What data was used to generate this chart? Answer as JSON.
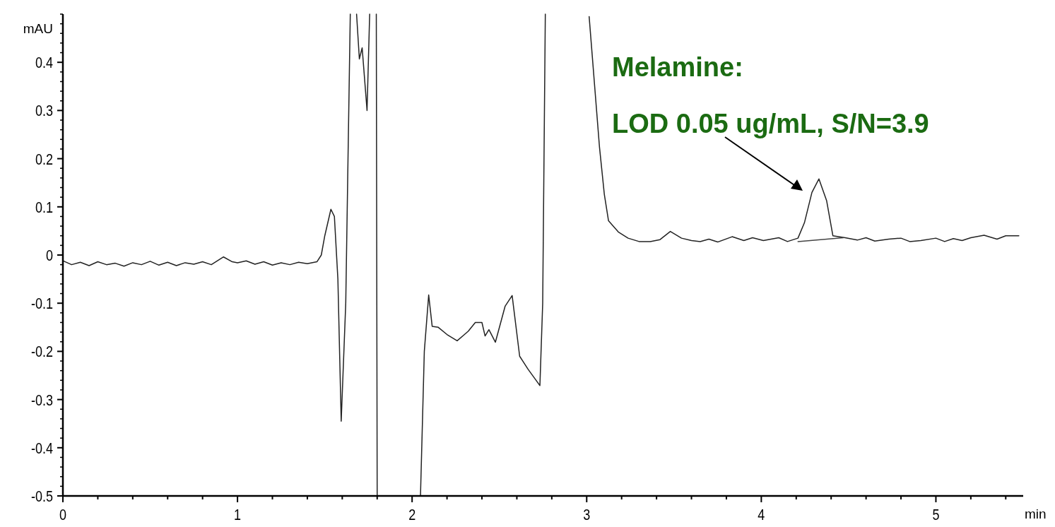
{
  "chart_data": {
    "type": "line",
    "xlabel": "min",
    "ylabel": "mAU",
    "xlim": [
      0,
      5.5
    ],
    "ylim": [
      -0.5,
      0.5
    ],
    "xticks": [
      0,
      {
        "value": 0.2,
        "label": null
      },
      {
        "value": 0.4,
        "label": null
      },
      {
        "value": 0.6,
        "label": null
      },
      {
        "value": 0.8,
        "label": null
      },
      1,
      {
        "value": 1.2,
        "label": null
      },
      {
        "value": 1.4,
        "label": null
      },
      {
        "value": 1.6,
        "label": null
      },
      {
        "value": 1.8,
        "label": null
      },
      2,
      {
        "value": 2.2,
        "label": null
      },
      {
        "value": 2.4,
        "label": null
      },
      {
        "value": 2.6,
        "label": null
      },
      {
        "value": 2.8,
        "label": null
      },
      3,
      {
        "value": 3.2,
        "label": null
      },
      {
        "value": 3.4,
        "label": null
      },
      {
        "value": 3.6,
        "label": null
      },
      {
        "value": 3.8,
        "label": null
      },
      4,
      {
        "value": 4.2,
        "label": null
      },
      {
        "value": 4.4,
        "label": null
      },
      {
        "value": 4.6,
        "label": null
      },
      {
        "value": 4.8,
        "label": null
      },
      5,
      {
        "value": 5.2,
        "label": null
      },
      {
        "value": 5.4,
        "label": null
      }
    ],
    "yticks": [
      -0.5,
      {
        "value": -0.48,
        "label": null
      },
      {
        "value": -0.46,
        "label": null
      },
      {
        "value": -0.44,
        "label": null
      },
      {
        "value": -0.42,
        "label": null
      },
      -0.4,
      {
        "value": -0.38,
        "label": null
      },
      {
        "value": -0.36,
        "label": null
      },
      {
        "value": -0.34,
        "label": null
      },
      {
        "value": -0.32,
        "label": null
      },
      -0.3,
      {
        "value": -0.28,
        "label": null
      },
      {
        "value": -0.26,
        "label": null
      },
      {
        "value": -0.24,
        "label": null
      },
      {
        "value": -0.22,
        "label": null
      },
      -0.2,
      {
        "value": -0.18,
        "label": null
      },
      {
        "value": -0.16,
        "label": null
      },
      {
        "value": -0.14,
        "label": null
      },
      {
        "value": -0.12,
        "label": null
      },
      -0.1,
      {
        "value": -0.08,
        "label": null
      },
      {
        "value": -0.06,
        "label": null
      },
      {
        "value": -0.04,
        "label": null
      },
      {
        "value": -0.02,
        "label": null
      },
      0,
      {
        "value": 0.02,
        "label": null
      },
      {
        "value": 0.04,
        "label": null
      },
      {
        "value": 0.06,
        "label": null
      },
      {
        "value": 0.08,
        "label": null
      },
      0.1,
      {
        "value": 0.12,
        "label": null
      },
      {
        "value": 0.14,
        "label": null
      },
      {
        "value": 0.16,
        "label": null
      },
      {
        "value": 0.18,
        "label": null
      },
      0.2,
      {
        "value": 0.22,
        "label": null
      },
      {
        "value": 0.24,
        "label": null
      },
      {
        "value": 0.26,
        "label": null
      },
      {
        "value": 0.28,
        "label": null
      },
      0.3,
      {
        "value": 0.32,
        "label": null
      },
      {
        "value": 0.34,
        "label": null
      },
      {
        "value": 0.36,
        "label": null
      },
      {
        "value": 0.38,
        "label": null
      },
      0.4,
      {
        "value": 0.42,
        "label": null
      },
      {
        "value": 0.44,
        "label": null
      },
      {
        "value": 0.46,
        "label": null
      },
      {
        "value": 0.48,
        "label": null
      },
      {
        "value": 0.5,
        "label": null
      }
    ],
    "series": [
      {
        "color": "#222222",
        "x": [
          0,
          0.05,
          0.1,
          0.15,
          0.2,
          0.25,
          0.3,
          0.35,
          0.4,
          0.45,
          0.5,
          0.55,
          0.6,
          0.65,
          0.7,
          0.75,
          0.8,
          0.85,
          0.92,
          0.97,
          1.0,
          1.05,
          1.1,
          1.15,
          1.2,
          1.25,
          1.3,
          1.35,
          1.4,
          1.455,
          1.48,
          1.5,
          1.535,
          1.555,
          1.575,
          1.594,
          1.62,
          1.646,
          1.66,
          1.682,
          1.698,
          1.714,
          1.742,
          1.757,
          1.77,
          1.795,
          1.8,
          1.9,
          2.048,
          2.07,
          2.095,
          2.115,
          2.15,
          2.2,
          2.258,
          2.3,
          2.322,
          2.362,
          2.4,
          2.418,
          2.44,
          2.477,
          2.533,
          2.573,
          2.616,
          2.664,
          2.7,
          2.732,
          2.748,
          2.763,
          2.9,
          3.014,
          3.073,
          3.101,
          3.125,
          3.181,
          3.237,
          3.3,
          3.364,
          3.42,
          3.479,
          3.543,
          3.6,
          3.65,
          3.7,
          3.75,
          3.833,
          3.9,
          3.95,
          4.012,
          4.1,
          4.15,
          4.21,
          4.247,
          4.29,
          4.33,
          4.374,
          4.41,
          4.48,
          4.55,
          4.6,
          4.65,
          4.73,
          4.8,
          4.85,
          4.914,
          5.0,
          5.05,
          5.1,
          5.15,
          5.2,
          5.276,
          5.35,
          5.4,
          5.475
        ],
        "values": [
          -0.012,
          -0.02,
          -0.015,
          -0.022,
          -0.014,
          -0.02,
          -0.017,
          -0.023,
          -0.016,
          -0.02,
          -0.013,
          -0.021,
          -0.015,
          -0.022,
          -0.016,
          -0.019,
          -0.014,
          -0.02,
          -0.004,
          -0.014,
          -0.016,
          -0.012,
          -0.019,
          -0.014,
          -0.021,
          -0.016,
          -0.02,
          -0.015,
          -0.018,
          -0.014,
          0.0,
          0.04,
          0.095,
          0.08,
          -0.05,
          -0.345,
          -0.1,
          0.5,
          null,
          0.5,
          0.407,
          0.43,
          0.3,
          0.5,
          null,
          0.5,
          -0.5,
          null,
          -0.5,
          -0.2,
          -0.083,
          -0.148,
          -0.15,
          -0.165,
          -0.178,
          -0.165,
          -0.158,
          -0.14,
          -0.14,
          -0.168,
          -0.155,
          -0.181,
          -0.106,
          -0.084,
          -0.21,
          -0.237,
          -0.255,
          -0.271,
          -0.1,
          0.5,
          null,
          0.495,
          0.225,
          0.126,
          0.071,
          0.048,
          0.035,
          0.028,
          0.028,
          0.032,
          0.049,
          0.035,
          0.03,
          0.028,
          0.033,
          0.027,
          0.038,
          0.03,
          0.036,
          0.03,
          0.036,
          0.028,
          0.035,
          0.067,
          0.13,
          0.158,
          0.113,
          0.04,
          0.036,
          0.031,
          0.036,
          0.029,
          0.033,
          0.035,
          0.028,
          0.03,
          0.035,
          0.028,
          0.034,
          0.03,
          0.036,
          0.041,
          0.033,
          0.04,
          0.04
        ]
      },
      {
        "color": "#444444",
        "x": [
          4.21,
          4.47
        ],
        "values": [
          0.028,
          0.036
        ]
      }
    ],
    "annotations": [
      "Melamine:",
      "LOD 0.05 ug/mL, S/N=3.9"
    ]
  }
}
